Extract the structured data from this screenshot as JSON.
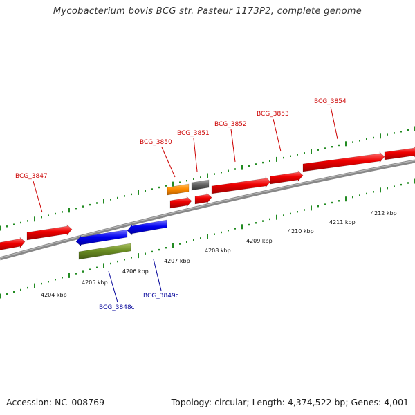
{
  "title": "Mycobacterium bovis BCG str. Pasteur 1173P2, complete genome",
  "footer": {
    "accession": "Accession: NC_008769",
    "summary": "Topology: circular; Length: 4,374,522 bp; Genes: 4,001"
  },
  "colors": {
    "forward_label": "#cc0000",
    "reverse_label": "#000099",
    "gene_red": "#ee0000",
    "gene_blue": "#0000ee",
    "gene_orange": "#ff8c00",
    "gene_gray": "#666666",
    "gene_green": "#6b8e23",
    "ruler_green": "#228b22",
    "backbone": "#888888"
  },
  "ruler_ticks": [
    "4204 kbp",
    "4205 kbp",
    "4206 kbp",
    "4207 kbp",
    "4208 kbp",
    "4209 kbp",
    "4210 kbp",
    "4211 kbp",
    "4212 kbp"
  ],
  "gene_labels": {
    "forward": [
      "BCG_3847",
      "BCG_3850",
      "BCG_3851",
      "BCG_3852",
      "BCG_3853",
      "BCG_3854"
    ],
    "reverse": [
      "BCG_3848c",
      "BCG_3849c"
    ]
  }
}
